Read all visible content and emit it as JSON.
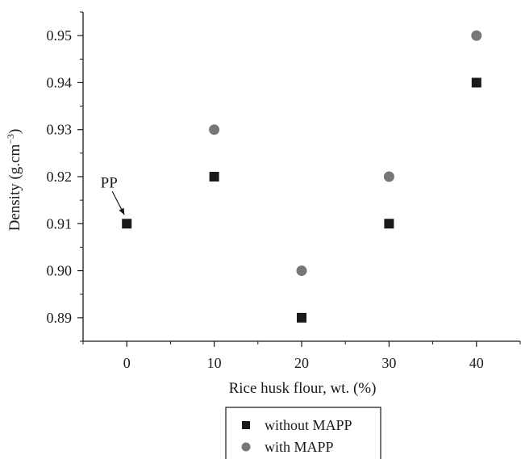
{
  "chart_data": {
    "type": "scatter",
    "title": "",
    "xlabel": "Rice husk flour, wt. (%)",
    "ylabel_main": "Density (g.cm",
    "ylabel_sup": "−3",
    "ylabel_close": ")",
    "xlim": [
      -5,
      45
    ],
    "ylim": [
      0.885,
      0.955
    ],
    "xticks": [
      0,
      10,
      20,
      30,
      40
    ],
    "xtick_labels": [
      "0",
      "10",
      "20",
      "30",
      "40"
    ],
    "yticks": [
      0.89,
      0.9,
      0.91,
      0.92,
      0.93,
      0.94,
      0.95
    ],
    "ytick_labels": [
      "0.89",
      "0.90",
      "0.91",
      "0.92",
      "0.93",
      "0.94",
      "0.95"
    ],
    "grid": false,
    "legend_position": "bottom-center",
    "series": [
      {
        "name": "without MAPP",
        "marker": "square",
        "color": "#1a1a1a",
        "x": [
          0,
          10,
          20,
          30,
          40
        ],
        "y": [
          0.91,
          0.92,
          0.89,
          0.91,
          0.94
        ]
      },
      {
        "name": "with MAPP",
        "marker": "circle",
        "color": "#777777",
        "x": [
          10,
          20,
          30,
          40
        ],
        "y": [
          0.93,
          0.9,
          0.92,
          0.95
        ]
      }
    ],
    "annotations": [
      {
        "text": "PP",
        "x": 0,
        "y": 0.91
      }
    ]
  }
}
